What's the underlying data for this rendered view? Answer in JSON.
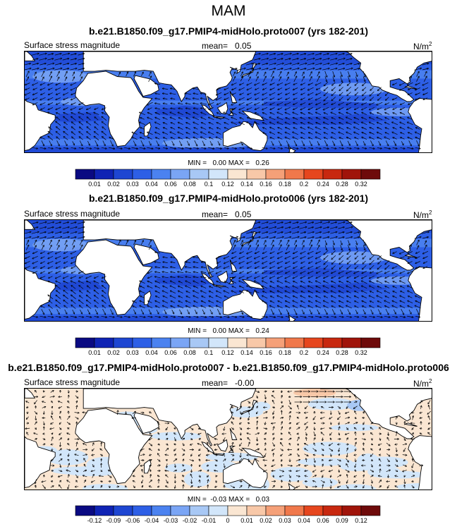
{
  "title": "MAM",
  "panels": [
    {
      "run_title": "b.e21.B1850.f09_g17.PMIP4-midHolo.proto007 (yrs 182-201)",
      "variable": "Surface stress magnitude",
      "mean_label": "mean=",
      "mean_value": "0.05",
      "units": "N/m",
      "units_exp": "2",
      "minmax": "MIN =   0.00 MAX =   0.26",
      "kind": "field"
    },
    {
      "run_title": "b.e21.B1850.f09_g17.PMIP4-midHolo.proto006 (yrs 182-201)",
      "variable": "Surface stress magnitude",
      "mean_label": "mean=",
      "mean_value": "0.05",
      "units": "N/m",
      "units_exp": "2",
      "minmax": "MIN =   0.00 MAX =   0.24",
      "kind": "field"
    },
    {
      "run_title": "b.e21.B1850.f09_g17.PMIP4-midHolo.proto007 - b.e21.B1850.f09_g17.PMIP4-midHolo.proto006",
      "variable": "Surface stress magnitude",
      "mean_label": "mean=",
      "mean_value": "-0.00",
      "units": "N/m",
      "units_exp": "2",
      "minmax": "MIN =  -0.03 MAX =   0.03",
      "kind": "difference"
    }
  ],
  "colorbars": {
    "field": [
      "0.01",
      "0.02",
      "0.03",
      "0.04",
      "0.06",
      "0.08",
      "0.1",
      "0.12",
      "0.14",
      "0.16",
      "0.18",
      "0.2",
      "0.24",
      "0.28",
      "0.32"
    ],
    "difference": [
      "-0.12",
      "-0.09",
      "-0.06",
      "-0.04",
      "-0.03",
      "-0.02",
      "-0.01",
      "0",
      "0.01",
      "0.02",
      "0.03",
      "0.04",
      "0.06",
      "0.09",
      "0.12"
    ],
    "colors": [
      "#0a0a82",
      "#0f23b4",
      "#1e46d2",
      "#2d5fe6",
      "#4b82f0",
      "#7aa5f5",
      "#a8c8f5",
      "#d2e6fa",
      "#fae6d2",
      "#f8c8a8",
      "#f5a078",
      "#f0784b",
      "#e6461e",
      "#c8280f",
      "#a0140a",
      "#6e0a0a"
    ]
  }
}
